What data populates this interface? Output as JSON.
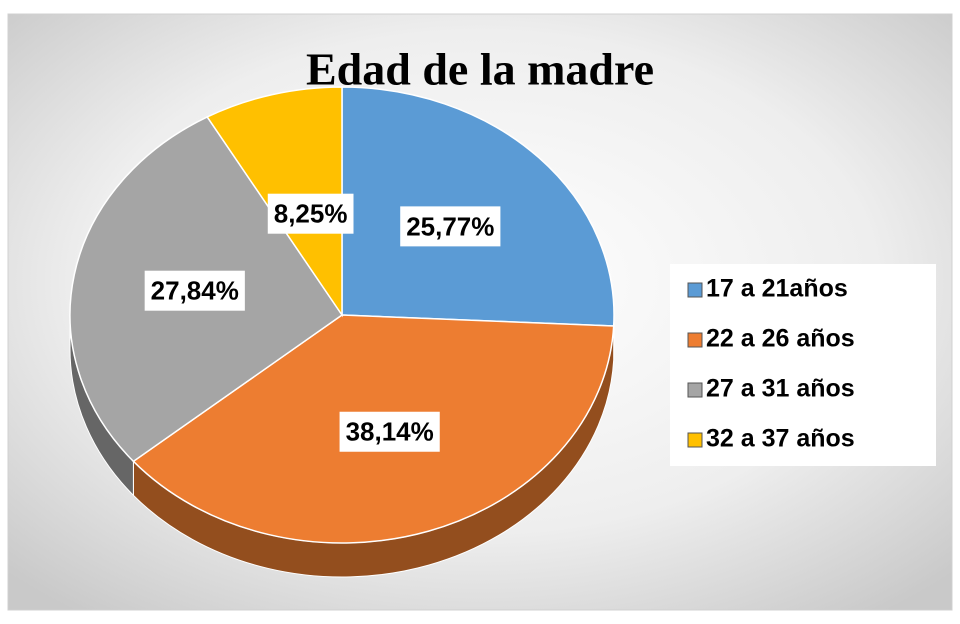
{
  "chart_data": {
    "type": "pie",
    "title": "Edad de la madre",
    "categories": [
      "17 a 21años",
      "22 a 26 años",
      "27 a 31 años",
      "32 a 37 años"
    ],
    "values": [
      25.77,
      38.14,
      27.84,
      8.25
    ],
    "value_labels": [
      "25,77%",
      "38,14%",
      "27,84%",
      "8,25%"
    ],
    "colors": [
      "#5b9bd5",
      "#ed7d31",
      "#a5a5a5",
      "#ffc000"
    ],
    "legend": "right"
  }
}
